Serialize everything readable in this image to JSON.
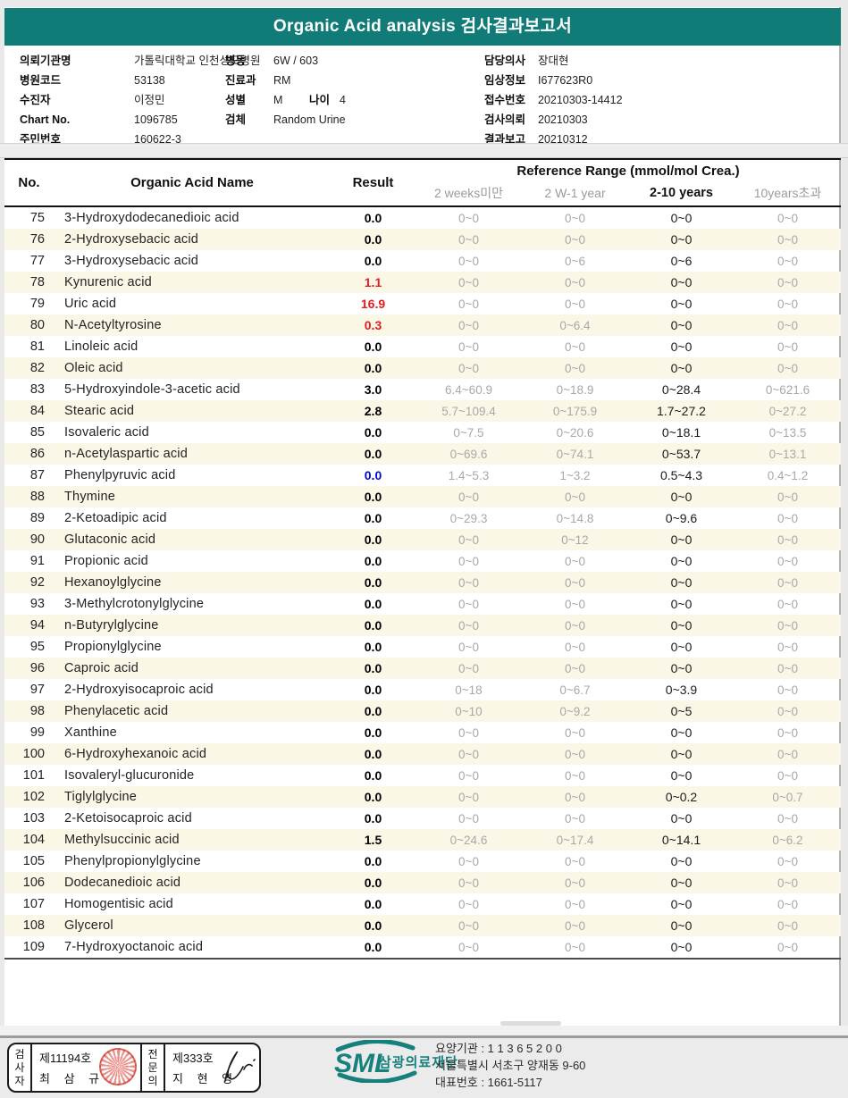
{
  "header": {
    "title": "Organic Acid analysis 검사결과보고서",
    "banner_color": "#117c77"
  },
  "patient": {
    "columns": [
      {
        "fields": [
          {
            "label": "의뢰기관명",
            "value": "가톨릭대학교 인천성모병원"
          },
          {
            "label": "병원코드",
            "value": "53138"
          },
          {
            "label": "수진자",
            "value": "이정민"
          },
          {
            "label": "Chart No.",
            "value": "1096785"
          },
          {
            "label": "주민번호",
            "value": "160622-3"
          }
        ]
      },
      {
        "fields": [
          {
            "label": "병동",
            "value": "6W / 603"
          },
          {
            "label": "진료과",
            "value": "RM"
          },
          {
            "label": "성별",
            "value": "M",
            "label2": "나이",
            "value2": "4"
          },
          {
            "label": "검체",
            "value": "Random Urine"
          }
        ]
      },
      {
        "fields": [
          {
            "label": "담당의사",
            "value": "장대현"
          },
          {
            "label": "임상정보",
            "value": "I677623R0"
          },
          {
            "label": "접수번호",
            "value": "20210303-14412"
          },
          {
            "label": "검사의뢰",
            "value": "20210303"
          },
          {
            "label": "결과보고",
            "value": "20210312"
          }
        ]
      }
    ]
  },
  "table": {
    "col_no": "No.",
    "col_name": "Organic Acid Name",
    "col_result": "Result",
    "col_ref_group": "Reference Range (mmol/mol Crea.)",
    "sub_headers": [
      "2 weeks미만",
      "2 W-1 year",
      "2-10 years",
      "10years초과"
    ],
    "highlight_sub_index": 2,
    "alt_row_color": "#fbf7e7",
    "result_red": "#e31d1d",
    "result_blue": "#0009cf",
    "ref_gray": "#a8a8a8",
    "rows": [
      {
        "no": 75,
        "name": "3-Hydroxydodecanedioic acid",
        "result": "0.0",
        "result_color": "black",
        "refs": [
          "0~0",
          "0~0",
          "0~0",
          "0~0"
        ]
      },
      {
        "no": 76,
        "name": "2-Hydroxysebacic acid",
        "result": "0.0",
        "result_color": "black",
        "refs": [
          "0~0",
          "0~0",
          "0~0",
          "0~0"
        ]
      },
      {
        "no": 77,
        "name": "3-Hydroxysebacic acid",
        "result": "0.0",
        "result_color": "black",
        "refs": [
          "0~0",
          "0~6",
          "0~6",
          "0~0"
        ]
      },
      {
        "no": 78,
        "name": "Kynurenic acid",
        "result": "1.1",
        "result_color": "red",
        "refs": [
          "0~0",
          "0~0",
          "0~0",
          "0~0"
        ]
      },
      {
        "no": 79,
        "name": "Uric acid",
        "result": "16.9",
        "result_color": "red",
        "refs": [
          "0~0",
          "0~0",
          "0~0",
          "0~0"
        ]
      },
      {
        "no": 80,
        "name": "N-Acetyltyrosine",
        "result": "0.3",
        "result_color": "red",
        "refs": [
          "0~0",
          "0~6.4",
          "0~0",
          "0~0"
        ]
      },
      {
        "no": 81,
        "name": "Linoleic acid",
        "result": "0.0",
        "result_color": "black",
        "refs": [
          "0~0",
          "0~0",
          "0~0",
          "0~0"
        ]
      },
      {
        "no": 82,
        "name": "Oleic acid",
        "result": "0.0",
        "result_color": "black",
        "refs": [
          "0~0",
          "0~0",
          "0~0",
          "0~0"
        ]
      },
      {
        "no": 83,
        "name": "5-Hydroxyindole-3-acetic acid",
        "result": "3.0",
        "result_color": "black",
        "refs": [
          "6.4~60.9",
          "0~18.9",
          "0~28.4",
          "0~621.6"
        ]
      },
      {
        "no": 84,
        "name": "Stearic acid",
        "result": "2.8",
        "result_color": "black",
        "refs": [
          "5.7~109.4",
          "0~175.9",
          "1.7~27.2",
          "0~27.2"
        ]
      },
      {
        "no": 85,
        "name": "Isovaleric acid",
        "result": "0.0",
        "result_color": "black",
        "refs": [
          "0~7.5",
          "0~20.6",
          "0~18.1",
          "0~13.5"
        ]
      },
      {
        "no": 86,
        "name": "n-Acetylaspartic acid",
        "result": "0.0",
        "result_color": "black",
        "refs": [
          "0~69.6",
          "0~74.1",
          "0~53.7",
          "0~13.1"
        ]
      },
      {
        "no": 87,
        "name": "Phenylpyruvic acid",
        "result": "0.0",
        "result_color": "blue",
        "refs": [
          "1.4~5.3",
          "1~3.2",
          "0.5~4.3",
          "0.4~1.2"
        ]
      },
      {
        "no": 88,
        "name": "Thymine",
        "result": "0.0",
        "result_color": "black",
        "refs": [
          "0~0",
          "0~0",
          "0~0",
          "0~0"
        ]
      },
      {
        "no": 89,
        "name": "2-Ketoadipic acid",
        "result": "0.0",
        "result_color": "black",
        "refs": [
          "0~29.3",
          "0~14.8",
          "0~9.6",
          "0~0"
        ]
      },
      {
        "no": 90,
        "name": "Glutaconic acid",
        "result": "0.0",
        "result_color": "black",
        "refs": [
          "0~0",
          "0~12",
          "0~0",
          "0~0"
        ]
      },
      {
        "no": 91,
        "name": "Propionic acid",
        "result": "0.0",
        "result_color": "black",
        "refs": [
          "0~0",
          "0~0",
          "0~0",
          "0~0"
        ]
      },
      {
        "no": 92,
        "name": "Hexanoylglycine",
        "result": "0.0",
        "result_color": "black",
        "refs": [
          "0~0",
          "0~0",
          "0~0",
          "0~0"
        ]
      },
      {
        "no": 93,
        "name": "3-Methylcrotonylglycine",
        "result": "0.0",
        "result_color": "black",
        "refs": [
          "0~0",
          "0~0",
          "0~0",
          "0~0"
        ]
      },
      {
        "no": 94,
        "name": "n-Butyrylglycine",
        "result": "0.0",
        "result_color": "black",
        "refs": [
          "0~0",
          "0~0",
          "0~0",
          "0~0"
        ]
      },
      {
        "no": 95,
        "name": "Propionylglycine",
        "result": "0.0",
        "result_color": "black",
        "refs": [
          "0~0",
          "0~0",
          "0~0",
          "0~0"
        ]
      },
      {
        "no": 96,
        "name": "Caproic acid",
        "result": "0.0",
        "result_color": "black",
        "refs": [
          "0~0",
          "0~0",
          "0~0",
          "0~0"
        ]
      },
      {
        "no": 97,
        "name": "2-Hydroxyisocaproic acid",
        "result": "0.0",
        "result_color": "black",
        "refs": [
          "0~18",
          "0~6.7",
          "0~3.9",
          "0~0"
        ]
      },
      {
        "no": 98,
        "name": "Phenylacetic acid",
        "result": "0.0",
        "result_color": "black",
        "refs": [
          "0~10",
          "0~9.2",
          "0~5",
          "0~0"
        ]
      },
      {
        "no": 99,
        "name": "Xanthine",
        "result": "0.0",
        "result_color": "black",
        "refs": [
          "0~0",
          "0~0",
          "0~0",
          "0~0"
        ]
      },
      {
        "no": 100,
        "name": "6-Hydroxyhexanoic acid",
        "result": "0.0",
        "result_color": "black",
        "refs": [
          "0~0",
          "0~0",
          "0~0",
          "0~0"
        ]
      },
      {
        "no": 101,
        "name": "Isovaleryl-glucuronide",
        "result": "0.0",
        "result_color": "black",
        "refs": [
          "0~0",
          "0~0",
          "0~0",
          "0~0"
        ]
      },
      {
        "no": 102,
        "name": "Tiglylglycine",
        "result": "0.0",
        "result_color": "black",
        "refs": [
          "0~0",
          "0~0",
          "0~0.2",
          "0~0.7"
        ]
      },
      {
        "no": 103,
        "name": "2-Ketoisocaproic acid",
        "result": "0.0",
        "result_color": "black",
        "refs": [
          "0~0",
          "0~0",
          "0~0",
          "0~0"
        ]
      },
      {
        "no": 104,
        "name": "Methylsuccinic acid",
        "result": "1.5",
        "result_color": "black",
        "refs": [
          "0~24.6",
          "0~17.4",
          "0~14.1",
          "0~6.2"
        ]
      },
      {
        "no": 105,
        "name": "Phenylpropionylglycine",
        "result": "0.0",
        "result_color": "black",
        "refs": [
          "0~0",
          "0~0",
          "0~0",
          "0~0"
        ]
      },
      {
        "no": 106,
        "name": "Dodecanedioic acid",
        "result": "0.0",
        "result_color": "black",
        "refs": [
          "0~0",
          "0~0",
          "0~0",
          "0~0"
        ]
      },
      {
        "no": 107,
        "name": "Homogentisic acid",
        "result": "0.0",
        "result_color": "black",
        "refs": [
          "0~0",
          "0~0",
          "0~0",
          "0~0"
        ]
      },
      {
        "no": 108,
        "name": "Glycerol",
        "result": "0.0",
        "result_color": "black",
        "refs": [
          "0~0",
          "0~0",
          "0~0",
          "0~0"
        ]
      },
      {
        "no": 109,
        "name": "7-Hydroxyoctanoic acid",
        "result": "0.0",
        "result_color": "black",
        "refs": [
          "0~0",
          "0~0",
          "0~0",
          "0~0"
        ]
      }
    ]
  },
  "footer": {
    "examiner": {
      "role": "검사자",
      "cert": "제11194호",
      "name": "최 삼 규"
    },
    "specialist": {
      "role": "전문의",
      "cert": "제333호",
      "name": "지 현 영"
    },
    "logo_text": "SML",
    "logo_org": "삼광의료재단",
    "logo_color": "#15807c",
    "address_lines": [
      "요양기관 : 1 1 3 6 5 2 0 0",
      "서울특별시 서초구 양재동 9-60",
      "대표번호 : 1661-5117"
    ]
  }
}
